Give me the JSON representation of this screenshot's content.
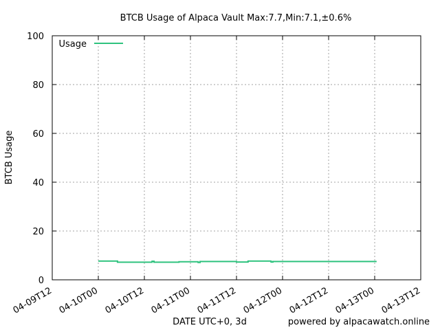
{
  "chart_data": {
    "type": "line",
    "title": "BTCB Usage of Alpaca Vault Max:7.7,Min:7.1,±0.6%",
    "xlabel": "DATE UTC+0, 3d",
    "ylabel": "BTCB Usage",
    "footer": "powered by alpacawatch.online",
    "xlim": [
      "2024-04-09T12:00",
      "2024-04-13T12:00"
    ],
    "ylim": [
      0,
      100
    ],
    "x_ticks": [
      "2024-04-09T12:00",
      "2024-04-10T00:00",
      "2024-04-10T12:00",
      "2024-04-11T00:00",
      "2024-04-11T12:00",
      "2024-04-12T00:00",
      "2024-04-12T12:00",
      "2024-04-13T00:00",
      "2024-04-13T12:00"
    ],
    "x_tick_labels": [
      "04-09T12",
      "04-10T00",
      "04-10T12",
      "04-11T00",
      "04-11T12",
      "04-12T00",
      "04-12T12",
      "04-13T00",
      "04-13T12"
    ],
    "y_ticks": [
      0,
      20,
      40,
      60,
      80,
      100
    ],
    "y_tick_labels": [
      "0",
      "20",
      "40",
      "60",
      "80",
      "100"
    ],
    "grid": true,
    "legend_position": "top-left",
    "series": [
      {
        "name": "Usage",
        "color": "#2ec27e",
        "points": [
          [
            "2024-04-10T00:00",
            7.7
          ],
          [
            "2024-04-10T05:00",
            7.7
          ],
          [
            "2024-04-10T05:00",
            7.2
          ],
          [
            "2024-04-10T14:00",
            7.2
          ],
          [
            "2024-04-10T14:00",
            7.6
          ],
          [
            "2024-04-10T14:30",
            7.6
          ],
          [
            "2024-04-10T14:30",
            7.2
          ],
          [
            "2024-04-10T21:00",
            7.2
          ],
          [
            "2024-04-10T21:00",
            7.4
          ],
          [
            "2024-04-11T02:00",
            7.4
          ],
          [
            "2024-04-11T02:00",
            7.1
          ],
          [
            "2024-04-11T02:30",
            7.1
          ],
          [
            "2024-04-11T02:30",
            7.5
          ],
          [
            "2024-04-11T12:00",
            7.5
          ],
          [
            "2024-04-11T12:00",
            7.3
          ],
          [
            "2024-04-11T15:00",
            7.3
          ],
          [
            "2024-04-11T15:00",
            7.7
          ],
          [
            "2024-04-11T21:00",
            7.7
          ],
          [
            "2024-04-11T21:00",
            7.3
          ],
          [
            "2024-04-11T21:30",
            7.3
          ],
          [
            "2024-04-11T21:30",
            7.5
          ],
          [
            "2024-04-13T00:30",
            7.5
          ]
        ]
      }
    ]
  }
}
